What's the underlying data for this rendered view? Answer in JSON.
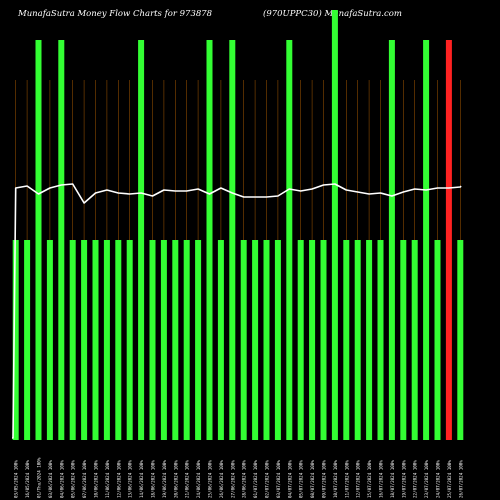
{
  "header": {
    "left_title": "MunafaSutra  Money Flow  Charts for 973878",
    "right_title": "(970UPPC30) MunafaSutra.com"
  },
  "colors": {
    "background": "#000000",
    "up_bar": "#33ff33",
    "down_bar": "#ff2222",
    "price_line": "#ffffff",
    "grid": "#8a4a00",
    "labels": "#ffffff"
  },
  "chart_data": {
    "type": "bar",
    "title": "MunafaSutra  Money Flow  Charts for 973878",
    "subtitle": "(970UPPC30) MunafaSutra.com",
    "xlabel": "",
    "ylabel": "",
    "grid": true,
    "categories": [
      "03/05/2024 100%",
      "16/05/2024 100%",
      "01/Thu/2024 100%",
      "03/06/2024 100%",
      "04/06/2024 100%",
      "05/06/2024 100%",
      "07/06/2024 100%",
      "10/06/2024 100%",
      "11/06/2024 100%",
      "12/06/2024 100%",
      "13/06/2024 100%",
      "14/06/2024 100%",
      "18/06/2024 100%",
      "19/06/2024 100%",
      "20/06/2024 100%",
      "21/06/2024 100%",
      "24/06/2024 100%",
      "25/06/2024 100%",
      "26/06/2024 100%",
      "27/06/2024 100%",
      "28/06/2024 100%",
      "01/07/2024 100%",
      "02/07/2024 100%",
      "03/07/2024 100%",
      "04/07/2024 100%",
      "05/07/2024 100%",
      "08/07/2024 100%",
      "09/07/2024 100%",
      "10/07/2024 100%",
      "11/07/2024 100%",
      "12/07/2024 100%",
      "15/07/2024 100%",
      "16/07/2024 100%",
      "18/07/2024 100%",
      "19/07/2024 100%",
      "22/07/2024 100%",
      "23/07/2024 100%",
      "24/07/2024 100%",
      "25/07/2024 100%",
      "26/07/2024 100%"
    ],
    "bar_direction": [
      "up",
      "up",
      "up",
      "up",
      "up",
      "up",
      "up",
      "up",
      "up",
      "up",
      "up",
      "up",
      "up",
      "up",
      "up",
      "up",
      "up",
      "up",
      "up",
      "up",
      "up",
      "up",
      "up",
      "up",
      "up",
      "up",
      "up",
      "up",
      "up",
      "up",
      "up",
      "up",
      "up",
      "up",
      "up",
      "up",
      "up",
      "up",
      "down",
      "up"
    ],
    "money_flow": [
      1,
      1,
      2,
      1,
      2,
      1,
      1,
      1,
      1,
      1,
      1,
      2,
      1,
      1,
      1,
      1,
      1,
      2,
      1,
      2,
      1,
      1,
      1,
      1,
      2,
      1,
      1,
      1,
      2.15,
      1,
      1,
      1,
      1,
      2,
      1,
      1,
      2,
      1,
      2,
      1
    ],
    "price": [
      188,
      186,
      194,
      188,
      185,
      184,
      203,
      193,
      190,
      193,
      194,
      193,
      196,
      190,
      191,
      191,
      189,
      194,
      188,
      193,
      197,
      197,
      197,
      196,
      189,
      191,
      189,
      185,
      184,
      190,
      192,
      194,
      193,
      196,
      192,
      189,
      190,
      188,
      188,
      187
    ],
    "price_axis_range": [
      177,
      470
    ],
    "bar_axis_max": 2
  }
}
